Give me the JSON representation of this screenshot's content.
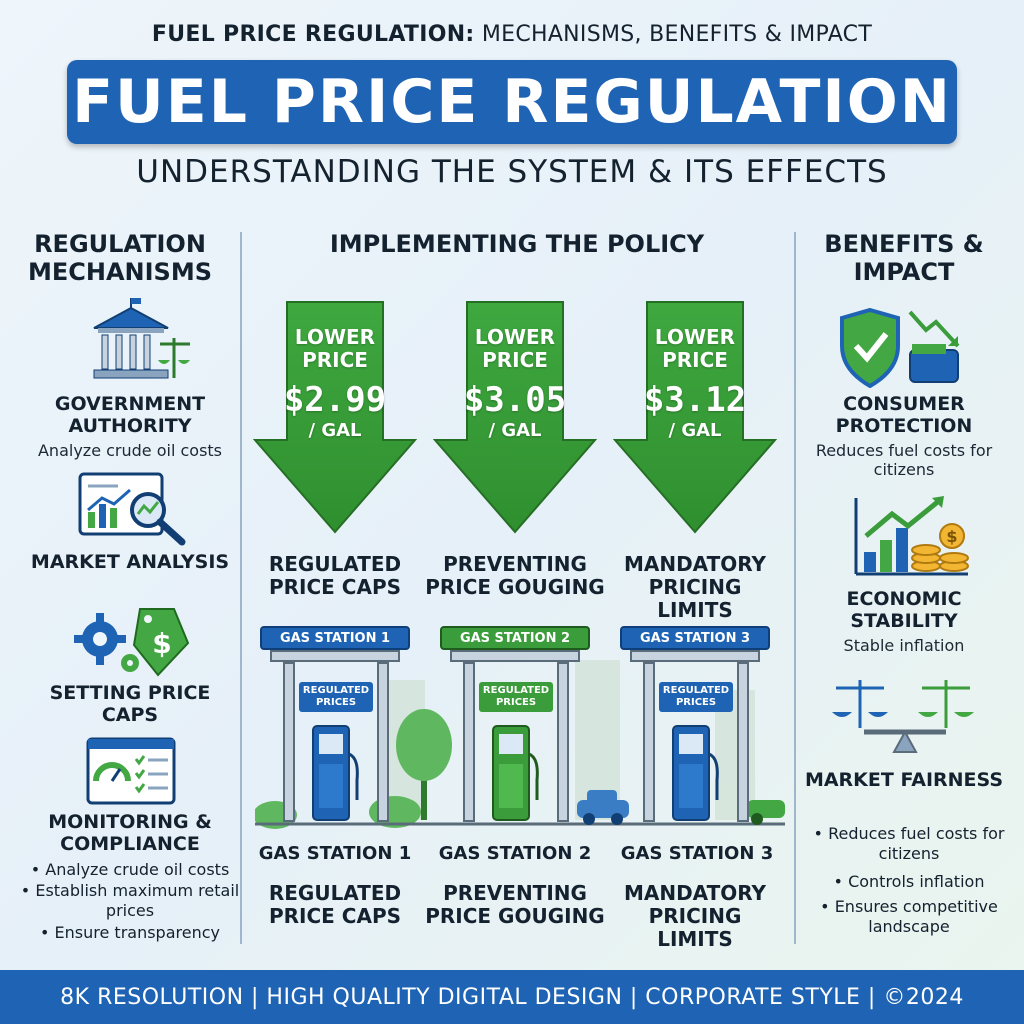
{
  "header": {
    "supertitle_bold": "FUEL PRICE REGULATION:",
    "supertitle_rest": "MECHANISMS, BENEFITS & IMPACT",
    "title": "FUEL PRICE REGULATION",
    "subtitle": "UNDERSTANDING THE SYSTEM & ITS EFFECTS"
  },
  "left": {
    "heading": "REGULATION MECHANISMS",
    "items": [
      {
        "title": "GOVERNMENT AUTHORITY",
        "desc": "Analyze crude oil costs",
        "icon": "government-building-icon"
      },
      {
        "title": "MARKET ANALYSIS",
        "icon": "market-analysis-icon"
      },
      {
        "title": "SETTING PRICE CAPS",
        "icon": "gear-price-tag-icon"
      },
      {
        "title": "MONITORING & COMPLIANCE",
        "icon": "monitoring-dashboard-icon"
      }
    ],
    "bullets": [
      "Analyze crude oil costs",
      "Establish maximum retail prices",
      "Ensure transparency"
    ]
  },
  "center": {
    "heading": "IMPLEMENTING THE POLICY",
    "arrows": [
      {
        "label": "LOWER PRICE",
        "price": "$2.99",
        "unit": "/ GAL",
        "caption": "REGULATED PRICE CAPS"
      },
      {
        "label": "LOWER PRICE",
        "price": "$3.05",
        "unit": "/ GAL",
        "caption": "PREVENTING PRICE GOUGING"
      },
      {
        "label": "LOWER PRICE",
        "price": "$3.12",
        "unit": "/ GAL",
        "caption": "MANDATORY PRICING LIMITS"
      }
    ],
    "stations": [
      {
        "sign": "GAS STATION 1",
        "sign_color": "#1f64b4",
        "reg": "REGULATED PRICES",
        "name": "GAS STATION 1",
        "caption": "REGULATED PRICE CAPS"
      },
      {
        "sign": "GAS STATION 2",
        "sign_color": "#3a9c3a",
        "reg": "REGULATED PRICES",
        "name": "GAS STATION 2",
        "caption": "PREVENTING PRICE GOUGING"
      },
      {
        "sign": "GAS STATION 3",
        "sign_color": "#1f64b4",
        "reg": "REGULATED PRICES",
        "name": "GAS STATION 3",
        "caption": "MANDATORY PRICING LIMITS"
      }
    ]
  },
  "right": {
    "heading": "BENEFITS & IMPACT",
    "items": [
      {
        "title": "CONSUMER PROTECTION",
        "desc": "Reduces fuel costs for citizens",
        "icon": "shield-check-icon"
      },
      {
        "title": "ECONOMIC STABILITY",
        "desc": "Stable inflation",
        "icon": "growth-coins-icon"
      },
      {
        "title": "MARKET FAIRNESS",
        "icon": "balance-scale-icon"
      }
    ],
    "bullets": [
      "Reduces fuel costs for citizens",
      "Controls inflation",
      "Ensures competitive landscape"
    ]
  },
  "footer": {
    "text": "8K RESOLUTION | HIGH QUALITY DIGITAL DESIGN | CORPORATE STYLE | ©2024"
  },
  "colors": {
    "brand_blue": "#1f64b4",
    "green": "#3a9c3a",
    "arrow_green": "#43a843"
  }
}
